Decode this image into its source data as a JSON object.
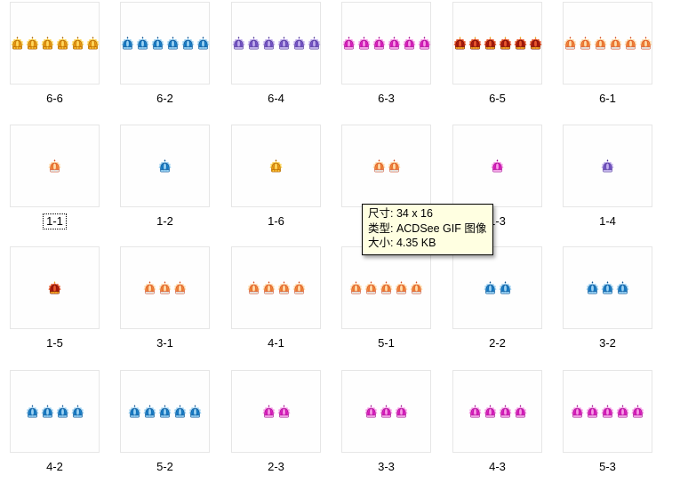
{
  "window": {
    "view": "thumbnail-file-browser",
    "background_color": "#ffffff",
    "thumbnail_border_color": "#e6e6e6"
  },
  "icon_palettes": {
    "1": {
      "name": "orange",
      "main": "#F28A3C",
      "light": "#FFDCAC",
      "dark": "#D5491F",
      "base": "#DCE0EA",
      "finial": "#D5491F"
    },
    "2": {
      "name": "blue",
      "main": "#1B84CE",
      "light": "#9ED2F2",
      "dark": "#0C4F8E",
      "base": "#7FC0E8",
      "finial": "#0C4F8E"
    },
    "3": {
      "name": "magenta",
      "main": "#E122C4",
      "light": "#F79AE6",
      "dark": "#9E0B8C",
      "base": "#F0A6E6",
      "finial": "#9E0B8C"
    },
    "4": {
      "name": "purple",
      "main": "#7A58CC",
      "light": "#C2AFEC",
      "dark": "#4D3592",
      "base": "#BFB0E8",
      "finial": "#4D3592"
    },
    "5": {
      "name": "red-gold",
      "main": "#AF1C10",
      "light": "#E85A2E",
      "dark": "#6E0B05",
      "base": "#ECAA1C",
      "finial": "#ECAA1C"
    },
    "6": {
      "name": "gold",
      "main": "#EF9D14",
      "light": "#FFD75E",
      "dark": "#A96405",
      "base": "#E2940E",
      "finial": "#A96405"
    }
  },
  "grid": {
    "columns": 6,
    "rows": 4,
    "icon": "crown-icon",
    "cells": [
      {
        "label": "6-6",
        "crown_count": 6,
        "palette": "6",
        "selected": false
      },
      {
        "label": "6-2",
        "crown_count": 6,
        "palette": "2",
        "selected": false
      },
      {
        "label": "6-4",
        "crown_count": 6,
        "palette": "4",
        "selected": false
      },
      {
        "label": "6-3",
        "crown_count": 6,
        "palette": "3",
        "selected": false
      },
      {
        "label": "6-5",
        "crown_count": 6,
        "palette": "5",
        "selected": false
      },
      {
        "label": "6-1",
        "crown_count": 6,
        "palette": "1",
        "selected": false
      },
      {
        "label": "1-1",
        "crown_count": 1,
        "palette": "1",
        "selected": true
      },
      {
        "label": "1-2",
        "crown_count": 1,
        "palette": "2",
        "selected": false
      },
      {
        "label": "1-6",
        "crown_count": 1,
        "palette": "6",
        "selected": false
      },
      {
        "label": "",
        "crown_count": 2,
        "palette": "1",
        "selected": false,
        "label_hidden_by_tooltip": true
      },
      {
        "label": "1-3",
        "crown_count": 1,
        "palette": "3",
        "selected": false
      },
      {
        "label": "1-4",
        "crown_count": 1,
        "palette": "4",
        "selected": false
      },
      {
        "label": "1-5",
        "crown_count": 1,
        "palette": "5",
        "selected": false
      },
      {
        "label": "3-1",
        "crown_count": 3,
        "palette": "1",
        "selected": false
      },
      {
        "label": "4-1",
        "crown_count": 4,
        "palette": "1",
        "selected": false
      },
      {
        "label": "5-1",
        "crown_count": 5,
        "palette": "1",
        "selected": false
      },
      {
        "label": "2-2",
        "crown_count": 2,
        "palette": "2",
        "selected": false
      },
      {
        "label": "3-2",
        "crown_count": 3,
        "palette": "2",
        "selected": false
      },
      {
        "label": "4-2",
        "crown_count": 4,
        "palette": "2",
        "selected": false
      },
      {
        "label": "5-2",
        "crown_count": 5,
        "palette": "2",
        "selected": false
      },
      {
        "label": "2-3",
        "crown_count": 2,
        "palette": "3",
        "selected": false
      },
      {
        "label": "3-3",
        "crown_count": 3,
        "palette": "3",
        "selected": false
      },
      {
        "label": "4-3",
        "crown_count": 4,
        "palette": "3",
        "selected": false
      },
      {
        "label": "5-3",
        "crown_count": 5,
        "palette": "3",
        "selected": false
      }
    ]
  },
  "tooltip": {
    "background_color": "#FFFFE1",
    "border_color": "#000000",
    "lines": [
      "尺寸: 34 x 16",
      "类型: ACDSee GIF 图像",
      "大小: 4.35 KB"
    ]
  }
}
